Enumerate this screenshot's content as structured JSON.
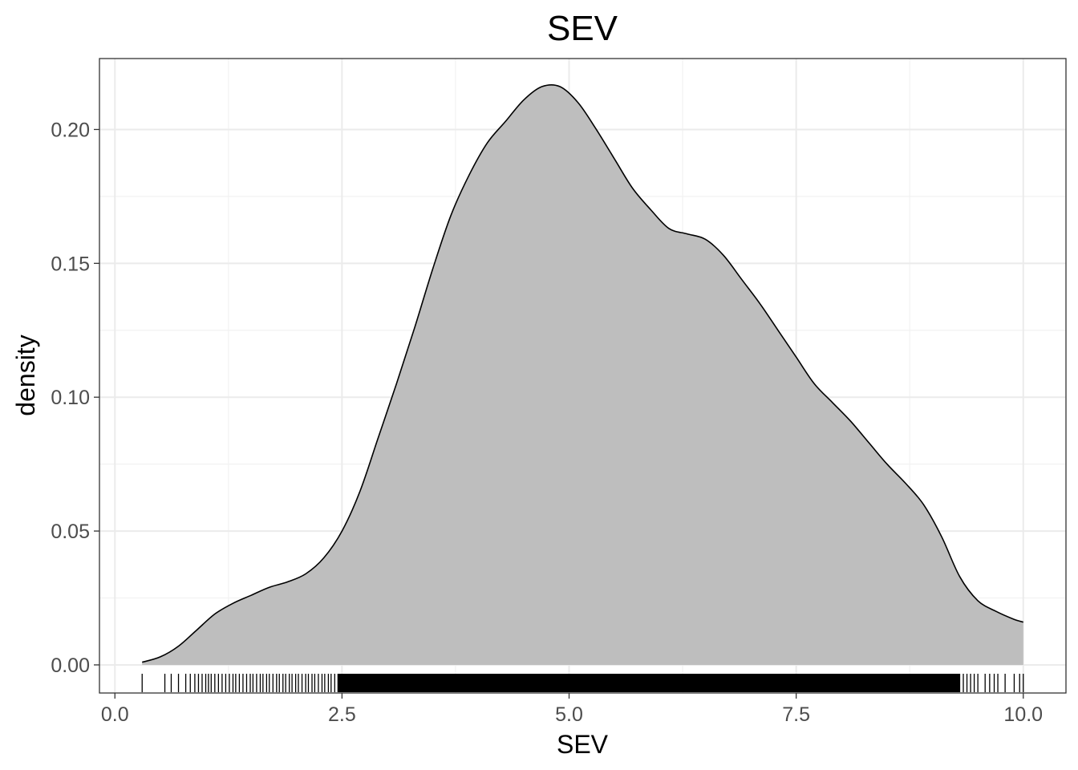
{
  "chart_data": {
    "type": "area",
    "title": "SEV",
    "xlabel": "SEV",
    "ylabel": "density",
    "xlim": [
      -0.17,
      10.47
    ],
    "ylim": [
      -0.0105,
      0.2265
    ],
    "x_ticks": [
      0.0,
      2.5,
      5.0,
      7.5,
      10.0
    ],
    "x_tick_labels": [
      "0.0",
      "2.5",
      "5.0",
      "7.5",
      "10.0"
    ],
    "y_ticks": [
      0.0,
      0.05,
      0.1,
      0.15,
      0.2
    ],
    "y_tick_labels": [
      "0.00",
      "0.05",
      "0.10",
      "0.15",
      "0.20"
    ],
    "grid": true,
    "fill_color": "#bebebe",
    "line_color": "#000000",
    "series": [
      {
        "x": [
          0.3,
          0.5,
          0.7,
          0.9,
          1.1,
          1.3,
          1.5,
          1.7,
          1.9,
          2.1,
          2.3,
          2.5,
          2.7,
          2.9,
          3.1,
          3.3,
          3.5,
          3.7,
          3.9,
          4.1,
          4.3,
          4.5,
          4.7,
          4.9,
          5.1,
          5.3,
          5.5,
          5.7,
          5.9,
          6.1,
          6.3,
          6.5,
          6.7,
          6.9,
          7.1,
          7.3,
          7.5,
          7.7,
          7.9,
          8.1,
          8.3,
          8.5,
          8.7,
          8.9,
          9.1,
          9.3,
          9.5,
          9.7,
          9.9,
          10.0
        ],
        "y": [
          0.001,
          0.003,
          0.007,
          0.013,
          0.019,
          0.023,
          0.026,
          0.029,
          0.031,
          0.034,
          0.04,
          0.05,
          0.065,
          0.085,
          0.105,
          0.126,
          0.148,
          0.168,
          0.183,
          0.195,
          0.203,
          0.211,
          0.216,
          0.216,
          0.21,
          0.2,
          0.189,
          0.178,
          0.17,
          0.163,
          0.161,
          0.159,
          0.153,
          0.144,
          0.135,
          0.125,
          0.115,
          0.105,
          0.098,
          0.091,
          0.083,
          0.075,
          0.068,
          0.06,
          0.048,
          0.033,
          0.024,
          0.02,
          0.017,
          0.016
        ]
      }
    ],
    "rug": [
      0.3,
      0.55,
      0.62,
      0.7,
      0.78,
      0.83,
      0.88,
      0.92,
      0.96,
      1.0,
      1.03,
      1.06,
      1.1,
      1.14,
      1.18,
      1.22,
      1.26,
      1.3,
      1.33,
      1.37,
      1.41,
      1.45,
      1.49,
      1.52,
      1.56,
      1.6,
      1.63,
      1.67,
      1.7,
      1.74,
      1.78,
      1.81,
      1.85,
      1.88,
      1.92,
      1.95,
      1.99,
      2.02,
      2.06,
      2.1,
      2.13,
      2.17,
      2.2,
      2.24,
      2.28,
      2.31,
      2.35,
      2.38,
      2.42,
      9.3,
      9.34,
      9.38,
      9.42,
      9.46,
      9.5,
      9.58,
      9.63,
      9.68,
      9.72,
      9.8,
      9.9,
      9.96,
      10.0
    ],
    "rug_dense_range": [
      2.45,
      9.3
    ]
  }
}
